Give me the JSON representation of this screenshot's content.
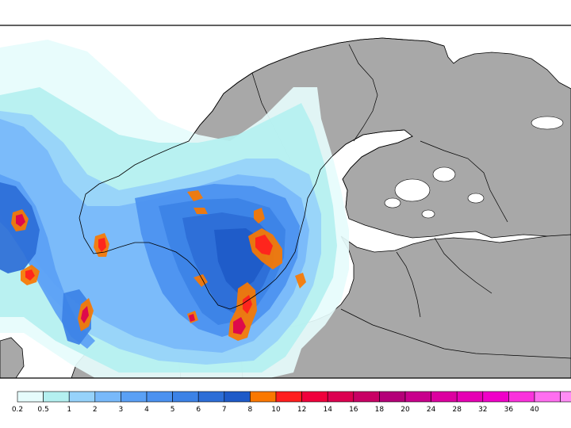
{
  "map": {
    "region": "Scandinavia, Baltic Sea and northern Europe",
    "land_color": "#a8a8a8",
    "sea_color": "#ffffff",
    "border_color": "#000000"
  },
  "legend": {
    "items": [
      {
        "label": "0.2",
        "color": "#e6fcfc"
      },
      {
        "label": "0.5",
        "color": "#b4f0f0"
      },
      {
        "label": "1",
        "color": "#96d2fa"
      },
      {
        "label": "2",
        "color": "#78b9fa"
      },
      {
        "label": "3",
        "color": "#5aa0f5"
      },
      {
        "label": "4",
        "color": "#4b91f0"
      },
      {
        "label": "5",
        "color": "#3c82e6"
      },
      {
        "label": "6",
        "color": "#2d6ed7"
      },
      {
        "label": "7",
        "color": "#1e5ac8"
      },
      {
        "label": "8",
        "color": "#fa7800"
      },
      {
        "label": "10",
        "color": "#ff1e1e"
      },
      {
        "label": "12",
        "color": "#f0003c"
      },
      {
        "label": "14",
        "color": "#dc0050"
      },
      {
        "label": "16",
        "color": "#c80064"
      },
      {
        "label": "18",
        "color": "#b40078"
      },
      {
        "label": "20",
        "color": "#c8008c"
      },
      {
        "label": "24",
        "color": "#dc00a0"
      },
      {
        "label": "28",
        "color": "#e600b4"
      },
      {
        "label": "32",
        "color": "#f000c8"
      },
      {
        "label": "36",
        "color": "#fa32dc"
      },
      {
        "label": "40",
        "color": "#ff6ef0"
      }
    ],
    "last_swatch_color": "#ff8cf5"
  }
}
